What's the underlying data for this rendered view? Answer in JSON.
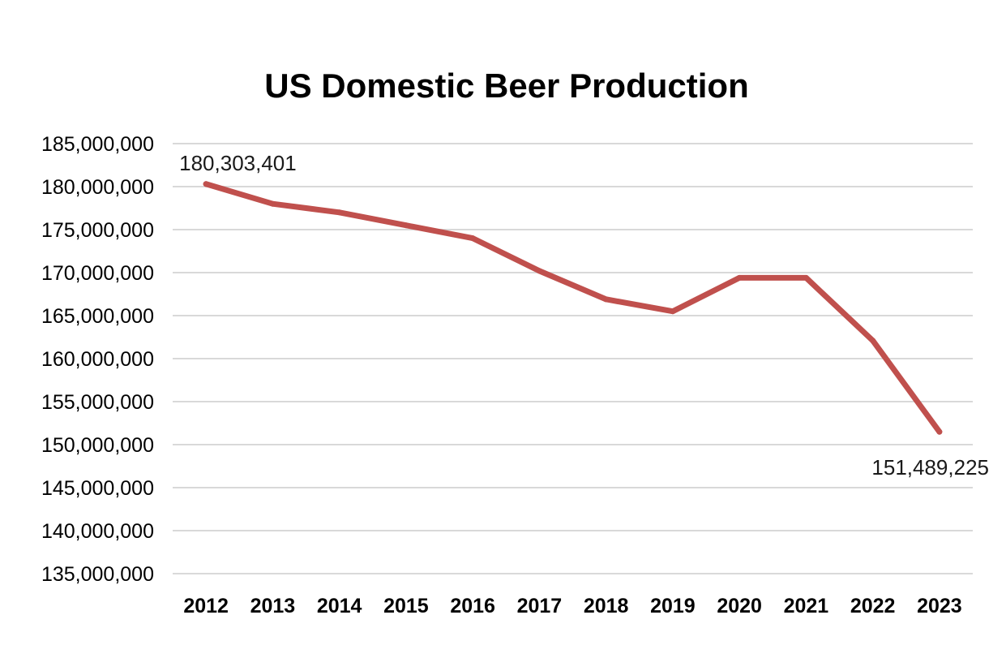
{
  "chart_data": {
    "type": "line",
    "title": "US Domestic Beer Production",
    "xlabel": "",
    "ylabel": "",
    "categories": [
      "2012",
      "2013",
      "2014",
      "2015",
      "2016",
      "2017",
      "2018",
      "2019",
      "2020",
      "2021",
      "2022",
      "2023"
    ],
    "series": [
      {
        "values": [
          180303401,
          178000000,
          177000000,
          175500000,
          174000000,
          170200000,
          166900000,
          165500000,
          169400000,
          169400000,
          162100000,
          151489225
        ],
        "color": "#C0504D"
      }
    ],
    "ylim": [
      135000000,
      185000000
    ],
    "y_ticks": [
      135000000,
      140000000,
      145000000,
      150000000,
      155000000,
      160000000,
      165000000,
      170000000,
      175000000,
      180000000,
      185000000
    ],
    "y_tick_labels": [
      "135,000,000",
      "140,000,000",
      "145,000,000",
      "150,000,000",
      "155,000,000",
      "160,000,000",
      "165,000,000",
      "170,000,000",
      "175,000,000",
      "180,000,000",
      "185,000,000"
    ],
    "data_labels": [
      {
        "index": 0,
        "text": "180,303,401"
      },
      {
        "index": 11,
        "text": "151,489,225"
      }
    ],
    "grid": true,
    "legend": "none"
  }
}
